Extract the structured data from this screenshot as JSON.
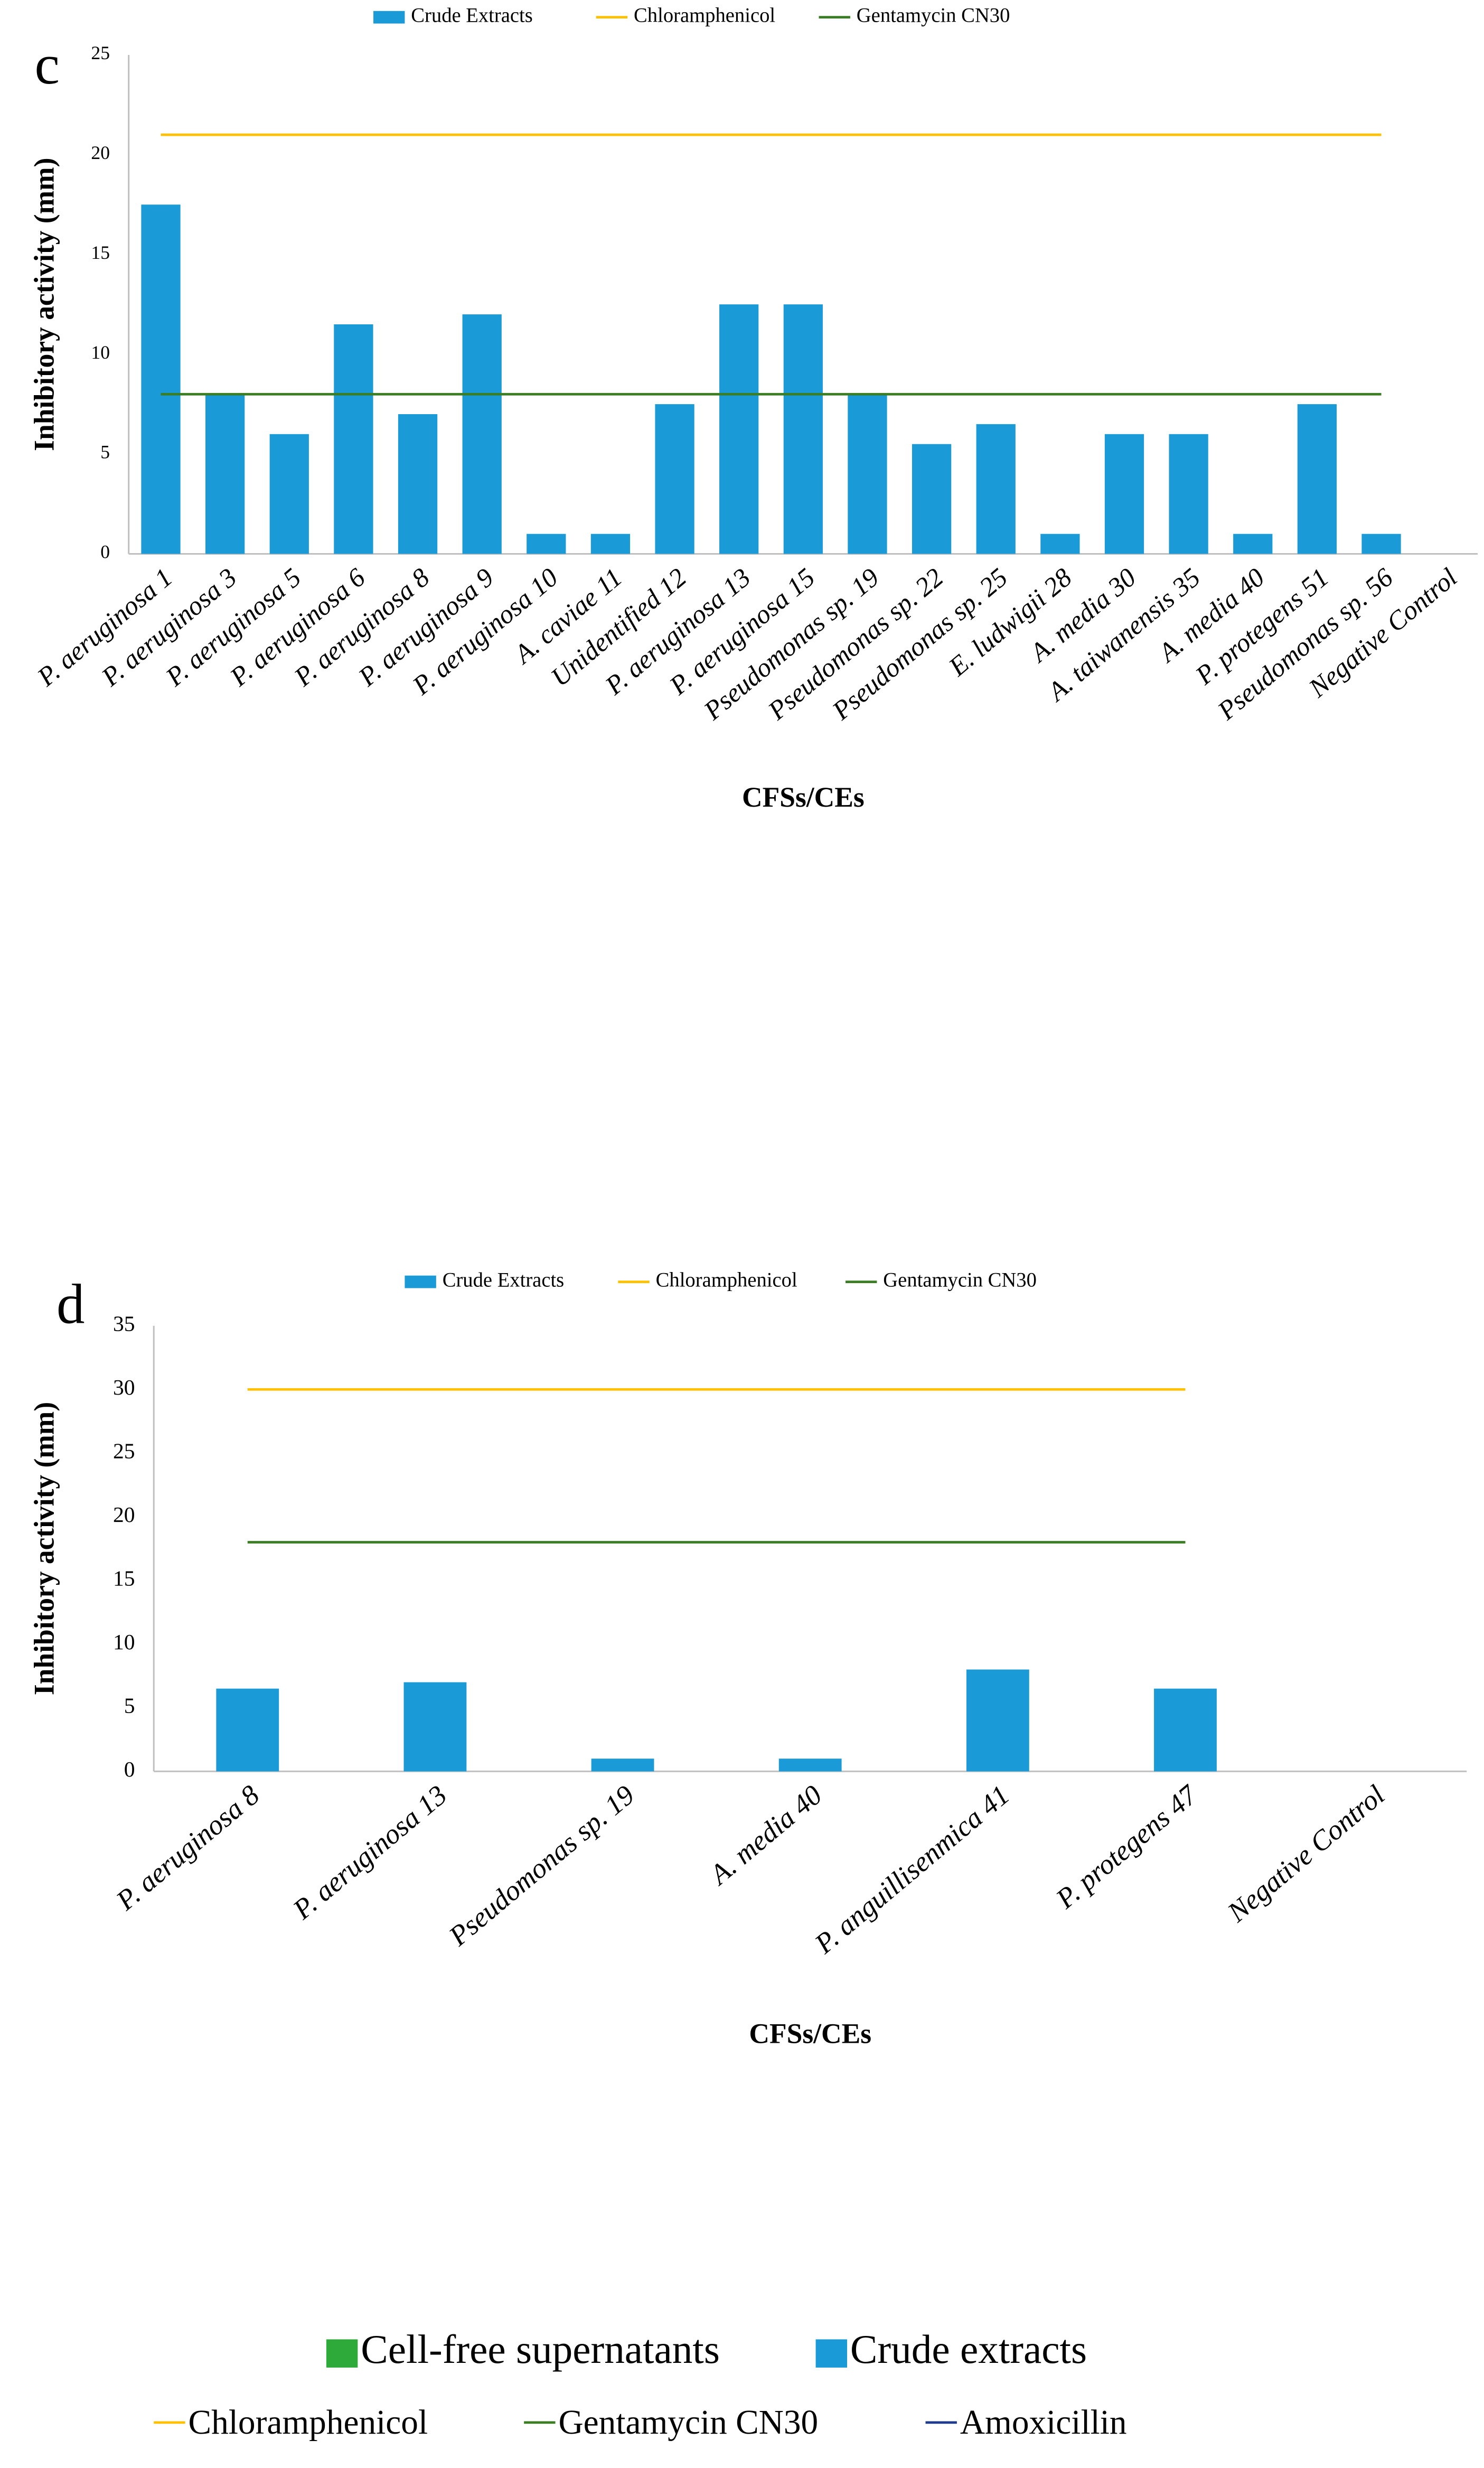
{
  "charts_panel": null,
  "chart_data": [
    {
      "type": "bar",
      "panel_label": "c",
      "x_label": "CFSs/CEs",
      "y_label": "Inhibitory activity (mm)",
      "categories": [
        "P. aeruginosa 1",
        "P. aeruginosa 3",
        "P. aeruginosa 5",
        "P. aeruginosa 6",
        "P. aeruginosa 8",
        "P. aeruginosa 9",
        "P. aeruginosa 10",
        "A. caviae 11",
        "Unidentified 12",
        "P. aeruginosa 13",
        "P. aeruginosa 15",
        "Pseudomonas sp. 19",
        "Pseudomonas sp. 22",
        "Pseudomonas sp. 25",
        "E. ludwigii 28",
        "A. media 30",
        "A. taiwanensis 35",
        "A. media 40",
        "P. protegens 51",
        "Pseudomonas sp. 56",
        "Negative Control"
      ],
      "series": [
        {
          "name": "Crude Extracts",
          "type": "bar",
          "color": "#1a9ad6",
          "values": [
            17.5,
            8,
            6,
            11.5,
            7,
            12,
            1,
            1,
            7.5,
            12.5,
            12.5,
            8,
            5.5,
            6.5,
            1,
            6,
            6,
            1,
            7.5,
            1,
            0
          ]
        },
        {
          "name": "Chloramphenicol",
          "type": "line",
          "color": "#ffc000",
          "values": [
            21,
            21,
            21,
            21,
            21,
            21,
            21,
            21,
            21,
            21,
            21,
            21,
            21,
            21,
            21,
            21,
            21,
            21,
            21,
            21,
            null
          ]
        },
        {
          "name": "Gentamycin CN30",
          "type": "line",
          "color": "#3a7d22",
          "values": [
            8,
            8,
            8,
            8,
            8,
            8,
            8,
            8,
            8,
            8,
            8,
            8,
            8,
            8,
            8,
            8,
            8,
            8,
            8,
            8,
            null
          ]
        }
      ],
      "ylim": [
        0,
        25
      ],
      "yticks": [
        0,
        5,
        10,
        15,
        20,
        25
      ],
      "grid": false,
      "legend": "top"
    },
    {
      "type": "bar",
      "panel_label": "d",
      "x_label": "CFSs/CEs",
      "y_label": "Inhibitory activity (mm)",
      "categories": [
        "P. aeruginosa 8",
        "P. aeruginosa 13",
        "Pseudomonas sp. 19",
        "A. media 40",
        "P. anguillisептica 41",
        "P. protegens 47",
        "Negative Control"
      ],
      "series": [
        {
          "name": "Crude Extracts",
          "type": "bar",
          "color": "#1a9ad6",
          "values": [
            6.5,
            7,
            1,
            1,
            8,
            6.5,
            0
          ]
        },
        {
          "name": "Chloramphenicol",
          "type": "line",
          "color": "#ffc000",
          "values": [
            30,
            30,
            30,
            30,
            30,
            30,
            null
          ]
        },
        {
          "name": "Gentamycin CN30",
          "type": "line",
          "color": "#3a7d22",
          "values": [
            18,
            18,
            18,
            18,
            18,
            18,
            null
          ]
        }
      ],
      "ylim": [
        0,
        35
      ],
      "yticks": [
        0,
        5,
        10,
        15,
        20,
        25,
        30,
        35
      ],
      "grid": false,
      "legend": "top"
    }
  ],
  "footer_legend": {
    "items": [
      {
        "name": "Cell-free supernatants",
        "marker": "square",
        "color": "#2eaa3a"
      },
      {
        "name": "Crude extracts",
        "marker": "square",
        "color": "#1a9ad6"
      },
      {
        "name": "Chloramphenicol",
        "marker": "line",
        "color": "#ffc000"
      },
      {
        "name": "Gentamycin CN30",
        "marker": "line",
        "color": "#3a7d22"
      },
      {
        "name": "Amoxicillin",
        "marker": "line",
        "color": "#1f3b8c"
      }
    ]
  }
}
